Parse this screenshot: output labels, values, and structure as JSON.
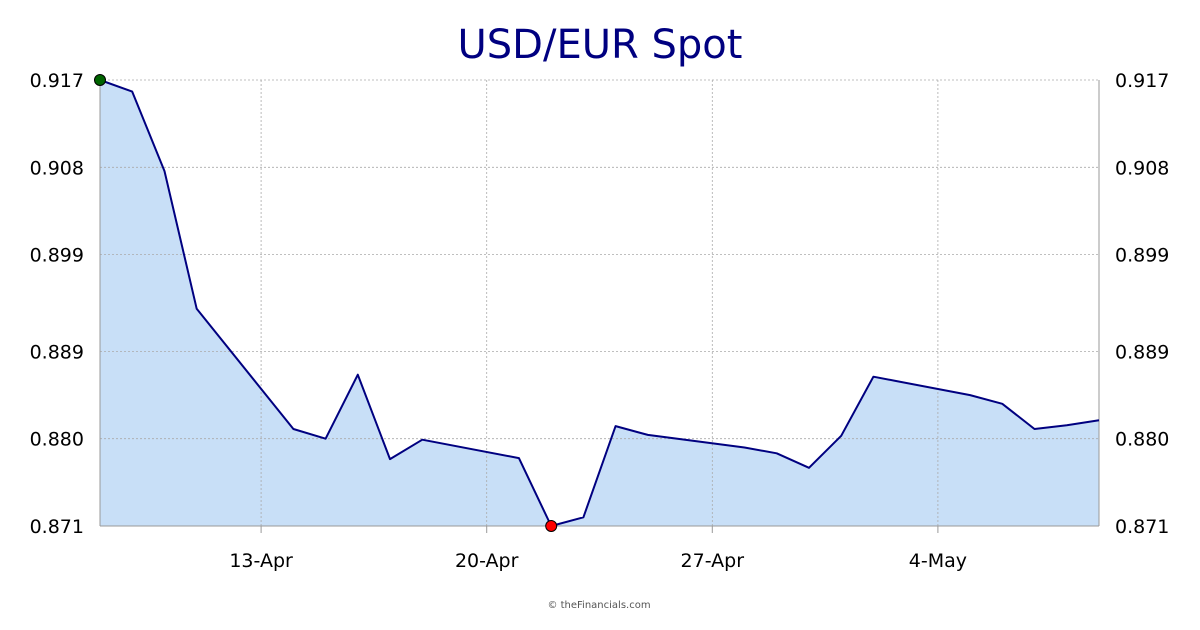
{
  "chart_data": {
    "type": "area",
    "title": "USD/EUR Spot",
    "xlabel": "",
    "ylabel": "",
    "x_tick_labels": [
      "13-Apr",
      "20-Apr",
      "27-Apr",
      "4-May"
    ],
    "y_tick_labels": [
      "0.917",
      "0.908",
      "0.899",
      "0.889",
      "0.880",
      "0.871"
    ],
    "y_ticks": [
      0.917,
      0.908,
      0.899,
      0.889,
      0.88,
      0.871
    ],
    "ylim": [
      0.871,
      0.917
    ],
    "grid": true,
    "legend": "none",
    "series": [
      {
        "x": [
          "2020-04-08",
          "2020-04-09",
          "2020-04-10",
          "2020-04-11",
          "2020-04-14",
          "2020-04-15",
          "2020-04-16",
          "2020-04-17",
          "2020-04-18",
          "2020-04-21",
          "2020-04-22",
          "2020-04-23",
          "2020-04-24",
          "2020-04-25",
          "2020-04-28",
          "2020-04-29",
          "2020-04-30",
          "2020-05-01",
          "2020-05-02",
          "2020-05-05",
          "2020-05-06",
          "2020-05-07",
          "2020-05-08",
          "2020-05-09"
        ],
        "values": [
          0.917,
          0.9158,
          0.9076,
          0.8934,
          0.881,
          0.88,
          0.8866,
          0.8779,
          0.8799,
          0.878,
          0.871,
          0.8719,
          0.8813,
          0.8804,
          0.8791,
          0.8785,
          0.877,
          0.8803,
          0.8864,
          0.8845,
          0.8836,
          0.881,
          0.8814,
          0.8819
        ]
      }
    ],
    "high_point": {
      "x": "2020-04-08",
      "value": 0.917,
      "color": "#006400"
    },
    "low_point": {
      "x": "2020-04-22",
      "value": 0.871,
      "color": "#ff0000"
    },
    "colors": {
      "line": "#000080",
      "fill": "#c8dff7",
      "grid": "#aaaaaa",
      "axis": "#999999",
      "title": "#000080"
    }
  },
  "footer": {
    "credit": "© theFinancials.com"
  }
}
